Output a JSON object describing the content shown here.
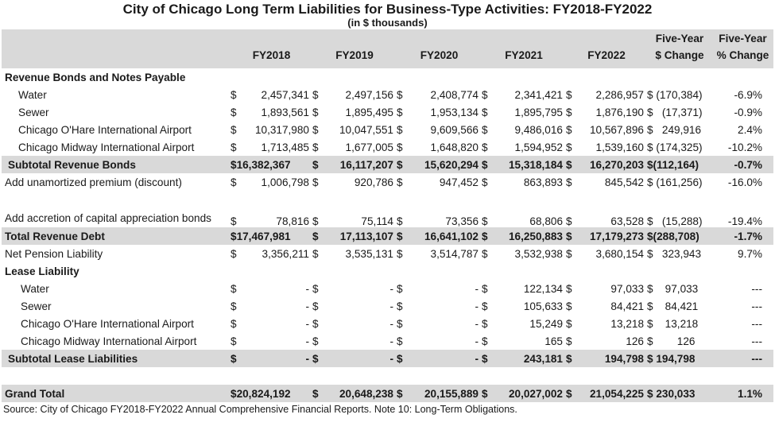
{
  "title": "City of Chicago Long Term Liabilities for Business-Type Activities: FY2018-FY2022",
  "subtitle": "(in $ thousands)",
  "headers": {
    "five_year_top": "Five-Year",
    "change_dollar": "$ Change",
    "five_year_top2": "Five-Year",
    "change_pct": "% Change",
    "years": [
      "FY2018",
      "FY2019",
      "FY2020",
      "FY2021",
      "FY2022"
    ]
  },
  "rows": [
    {
      "type": "section",
      "label": "Revenue Bonds and Notes Payable"
    },
    {
      "type": "item",
      "label": "Water",
      "vals": [
        "2,457,341",
        "2,497,156",
        "2,408,774",
        "2,341,421",
        "2,286,957"
      ],
      "dollars": [
        "$",
        "$",
        "$",
        "$",
        "$"
      ],
      "change": "$ (170,384)",
      "pct": "-6.9%"
    },
    {
      "type": "item",
      "label": "Sewer",
      "vals": [
        "1,893,561",
        "1,895,495",
        "1,953,134",
        "1,895,795",
        "1,876,190"
      ],
      "dollars": [
        "$",
        "$",
        "$",
        "$",
        "$"
      ],
      "change": "$   (17,371)",
      "pct": "-0.9%"
    },
    {
      "type": "item",
      "label": "Chicago O'Hare International Airport",
      "vals": [
        "$ 10,317,980",
        "10,047,551",
        "9,609,566",
        "9,486,016",
        "$ 10,567,896"
      ],
      "dollars": [
        "",
        "$",
        "$",
        "$",
        ""
      ],
      "change": "$   249,916",
      "pct": "2.4%"
    },
    {
      "type": "item",
      "label": "Chicago Midway International Airport",
      "vals": [
        "1,713,485",
        "1,677,005",
        "1,648,820",
        "1,594,952",
        "1,539,160"
      ],
      "dollars": [
        "$",
        "$",
        "$",
        "$",
        "$"
      ],
      "change": "$ (174,325)",
      "pct": "-10.2%"
    },
    {
      "type": "subtotal",
      "label": "Subtotal Revenue Bonds",
      "vals": [
        "$16,382,367",
        "$ 16,117,207",
        "$ 15,620,294",
        "$ 15,318,184",
        "$ 16,270,203"
      ],
      "dollars": [
        "",
        "",
        "",
        "",
        ""
      ],
      "change": "$(112,164)",
      "pct": "-0.7%"
    },
    {
      "type": "plain",
      "label": "Add unamortized premium (discount)",
      "vals": [
        "1,006,798",
        "920,786",
        "947,452",
        "863,893",
        "845,542"
      ],
      "dollars": [
        "$",
        "$",
        "$",
        "$",
        "$"
      ],
      "change": "$ (161,256)",
      "pct": "-16.0%"
    },
    {
      "type": "tall",
      "label": "Add accretion of capital appreciation bonds",
      "vals": [
        "78,816",
        "75,114",
        "73,356",
        "68,806",
        "63,528"
      ],
      "dollars": [
        "$",
        "$",
        "$",
        "$",
        "$"
      ],
      "change": "$   (15,288)",
      "pct": "-19.4%"
    },
    {
      "type": "total",
      "label": "Total Revenue Debt",
      "vals": [
        "$17,467,981",
        "$ 17,113,107",
        "$ 16,641,102",
        "$ 16,250,883",
        "$ 17,179,273"
      ],
      "dollars": [
        "",
        "",
        "",
        "",
        ""
      ],
      "change": "$(288,708)",
      "pct": "-1.7%"
    },
    {
      "type": "plain",
      "label": "Net Pension Liability",
      "vals": [
        "3,356,211",
        "3,535,131",
        "3,514,787",
        "3,532,938",
        "3,680,154"
      ],
      "dollars": [
        "$",
        "$",
        "$",
        "$",
        "$"
      ],
      "change": "$   323,943",
      "pct": "9.7%"
    },
    {
      "type": "section",
      "label": "Lease Liability"
    },
    {
      "type": "item2",
      "label": "Water",
      "vals": [
        "-",
        "-",
        "-",
        "122,134",
        "97,033"
      ],
      "dollars": [
        "$",
        "$",
        "$",
        "$",
        "$"
      ],
      "change": "$    97,033",
      "pct": "---"
    },
    {
      "type": "item2",
      "label": "Sewer",
      "vals": [
        "-",
        "-",
        "-",
        "105,633",
        "84,421"
      ],
      "dollars": [
        "$",
        "$",
        "$",
        "$",
        "$"
      ],
      "change": "$    84,421",
      "pct": "---"
    },
    {
      "type": "item2",
      "label": "Chicago O'Hare International Airport",
      "vals": [
        "-",
        "-",
        "-",
        "15,249",
        "13,218"
      ],
      "dollars": [
        "$",
        "$",
        "$",
        "$",
        "$"
      ],
      "change": "$    13,218",
      "pct": "---"
    },
    {
      "type": "item2",
      "label": "Chicago Midway International Airport",
      "vals": [
        "-",
        "-",
        "-",
        "165",
        "126"
      ],
      "dollars": [
        "$",
        "$",
        "$",
        "$",
        "$"
      ],
      "change": "$        126",
      "pct": "---"
    },
    {
      "type": "subtotal",
      "label": "Subtotal Lease Liabilities",
      "vals": [
        "-",
        "-",
        "-",
        "243,181",
        "194,798"
      ],
      "dollars": [
        "$",
        "$",
        "$",
        "$",
        "$"
      ],
      "change": "$ 194,798",
      "pct": "---"
    },
    {
      "type": "blank"
    },
    {
      "type": "total",
      "label": "Grand Total",
      "vals": [
        "$20,824,192",
        "$ 20,648,238",
        "$ 20,155,889",
        "$ 20,027,002",
        "$ 21,054,225"
      ],
      "dollars": [
        "",
        "",
        "",
        "",
        ""
      ],
      "change": "$ 230,033",
      "pct": "1.1%"
    }
  ],
  "source": "Source: City of Chicago FY2018-FY2022 Annual Comprehensive Financial Reports. Note 10: Long-Term Obligations."
}
